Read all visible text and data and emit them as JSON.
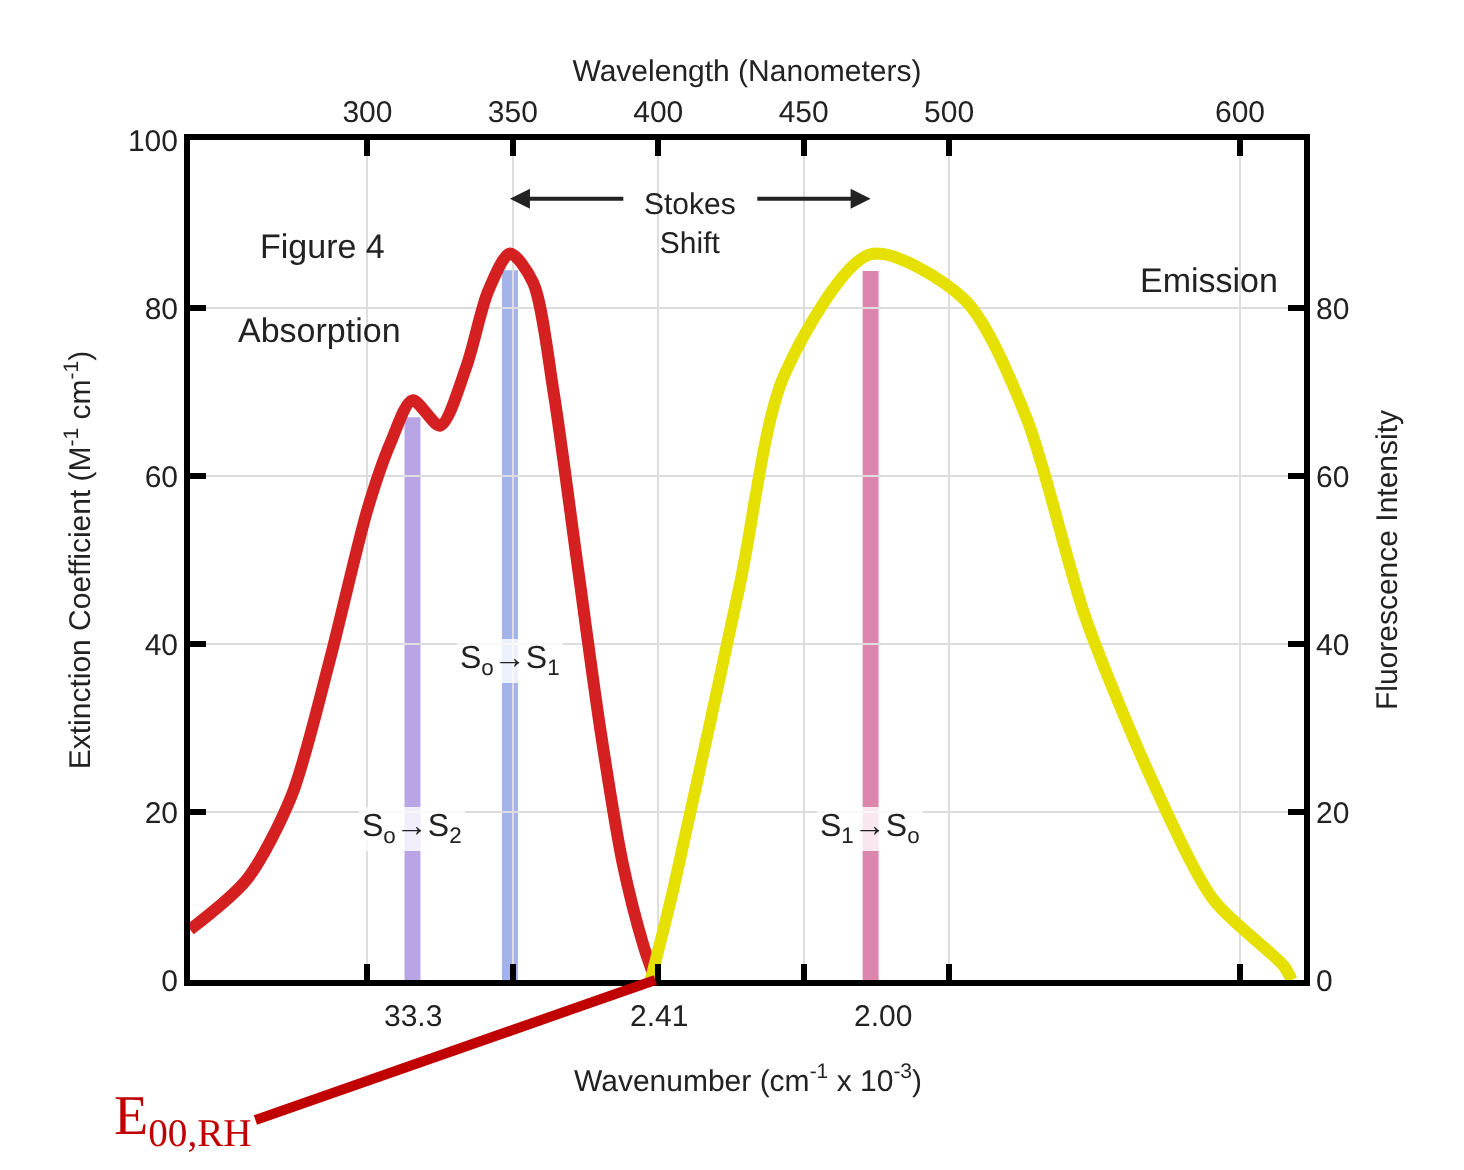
{
  "chart_data": {
    "type": "line",
    "xlabel": "Wavelength (Nanometers)",
    "ylabel": "Extinction Coefficient (M$^{-1}$ cm$^{-1}$)",
    "y2label": "Fluorescence Intensity",
    "xlim": [
      239,
      622
    ],
    "xticks": [
      300,
      350,
      400,
      450,
      500,
      600
    ],
    "ylim": [
      0,
      100
    ],
    "yticks": [
      0,
      20,
      40,
      60,
      80,
      100
    ],
    "y2lim": [
      0,
      100
    ],
    "y2ticks": [
      0,
      20,
      40,
      60,
      80
    ],
    "ref_lines": [
      {
        "axis": "x",
        "value": 315.5,
        "label": "S$_{o}$→S$_{2}$",
        "color": "#a88ee0"
      },
      {
        "axis": "x",
        "value": 349,
        "label": "S$_{o}$→S$_{1}$",
        "color": "#8c9fe6"
      },
      {
        "axis": "x",
        "value": 473,
        "label": "S$_{1}$→S$_{o}$",
        "color": "#d4689a"
      }
    ],
    "grid": true,
    "marker": "none",
    "line_style": "solid",
    "series": [
      {
        "color": "#d42020",
        "x": [
          239,
          258.6,
          274,
          287,
          300,
          308,
          315.5,
          325,
          334,
          341.5,
          349,
          357,
          364,
          372,
          380,
          387.7,
          395,
          399
        ],
        "values": [
          6,
          12,
          22,
          38,
          56,
          64,
          69,
          66,
          73,
          82,
          86.5,
          83,
          70,
          50,
          30,
          14,
          4,
          0
        ]
      },
      {
        "color": "#e6e000",
        "axis": "y2",
        "x": [
          397.4,
          405.3,
          428,
          443.3,
          473,
          505.3,
          526.5,
          547,
          570.8,
          591,
          615,
          617.7
        ],
        "values": [
          0,
          11,
          47,
          72,
          86.4,
          81,
          67,
          43,
          23,
          9.5,
          1.7,
          0
        ]
      }
    ],
    "annotations": [
      "Figure 4",
      "Absorption",
      "Emission",
      "Stokes\nShift",
      "33.3",
      "2.41",
      "2.00",
      "Wavenumber (cm$^{-1}$ x 10$^{-3}$)",
      {
        "text": "E$_{00,RH}$",
        "x": 399,
        "y": 0
      }
    ]
  }
}
